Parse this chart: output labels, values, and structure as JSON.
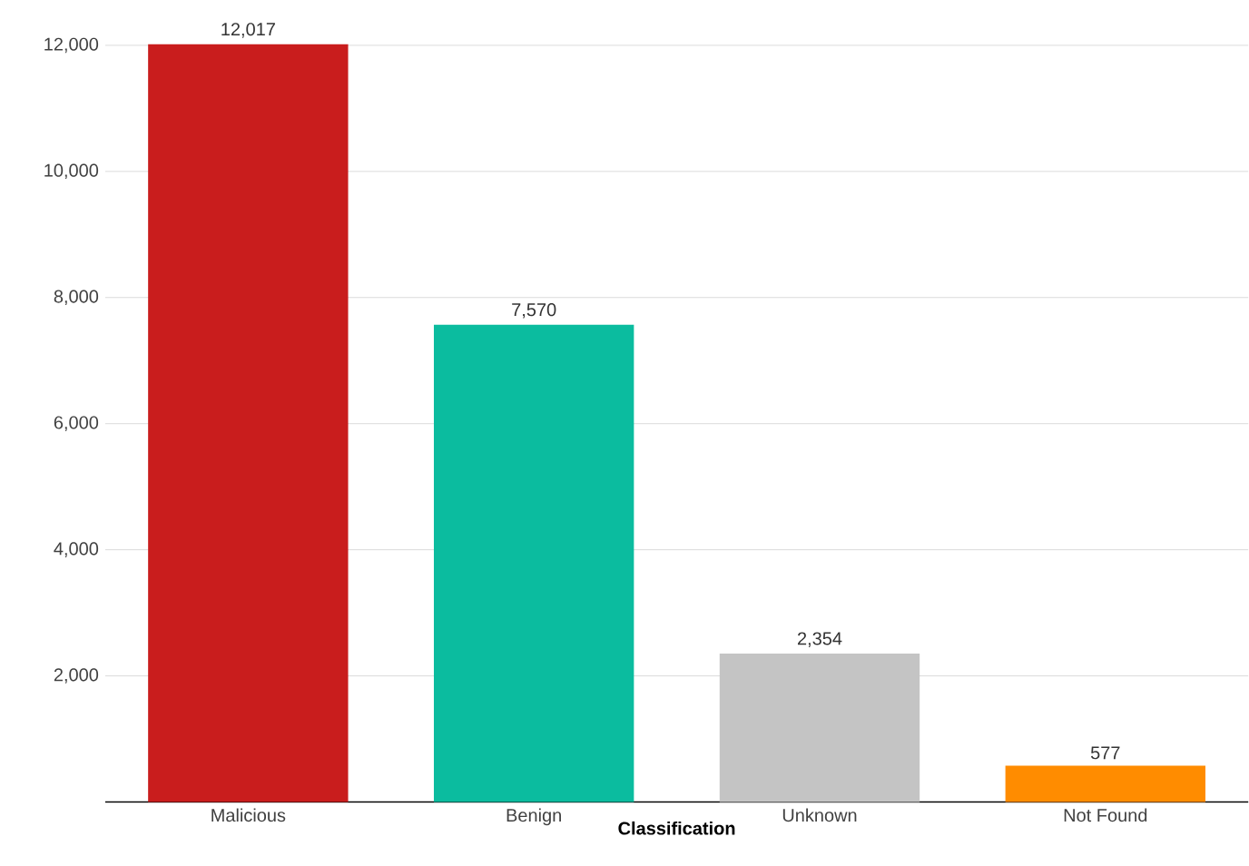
{
  "chart_data": {
    "type": "bar",
    "xlabel": "Classification",
    "categories": [
      "Malicious",
      "Benign",
      "Unknown",
      "Not Found"
    ],
    "values": [
      12017,
      7570,
      2354,
      577
    ],
    "colors": [
      "#c91d1d",
      "#0bbc9f",
      "#c4c4c4",
      "#ff8c00"
    ],
    "value_labels": [
      "12,017",
      "7,570",
      "2,354",
      "577"
    ],
    "ylim": [
      0,
      12100
    ],
    "yticks": [
      {
        "value": 2000,
        "label": "2,000"
      },
      {
        "value": 4000,
        "label": "4,000"
      },
      {
        "value": 6000,
        "label": "6,000"
      },
      {
        "value": 8000,
        "label": "8,000"
      },
      {
        "value": 10000,
        "label": "10,000"
      },
      {
        "value": 12000,
        "label": "12,000"
      }
    ],
    "grid": "y"
  }
}
